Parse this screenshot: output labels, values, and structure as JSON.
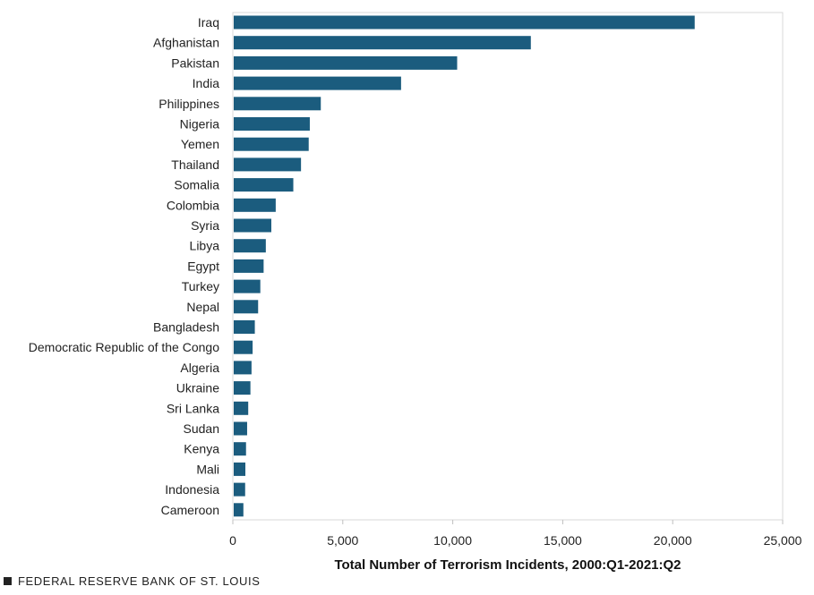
{
  "chart_data": {
    "type": "bar",
    "orientation": "horizontal",
    "title": "",
    "xlabel": "Total Number of Terrorism Incidents, 2000:Q1-2021:Q2",
    "ylabel": "",
    "xlim": [
      0,
      25000
    ],
    "xticks": [
      "0",
      "5,000",
      "10,000",
      "15,000",
      "20,000",
      "25,000"
    ],
    "xtick_values": [
      0,
      5000,
      10000,
      15000,
      20000,
      25000
    ],
    "grid": false,
    "bar_color": "#1b5c7e",
    "categories": [
      "Iraq",
      "Afghanistan",
      "Pakistan",
      "India",
      "Philippines",
      "Nigeria",
      "Yemen",
      "Thailand",
      "Somalia",
      "Colombia",
      "Syria",
      "Libya",
      "Egypt",
      "Turkey",
      "Nepal",
      "Bangladesh",
      "Democratic Republic of the Congo",
      "Algeria",
      "Ukraine",
      "Sri Lanka",
      "Sudan",
      "Kenya",
      "Mali",
      "Indonesia",
      "Cameroon"
    ],
    "values": [
      21000,
      13550,
      10200,
      7650,
      4000,
      3500,
      3450,
      3100,
      2750,
      1950,
      1750,
      1500,
      1400,
      1250,
      1150,
      1000,
      900,
      850,
      800,
      700,
      650,
      600,
      570,
      560,
      480
    ]
  },
  "footer": {
    "source": "FEDERAL RESERVE BANK OF ST. LOUIS"
  }
}
